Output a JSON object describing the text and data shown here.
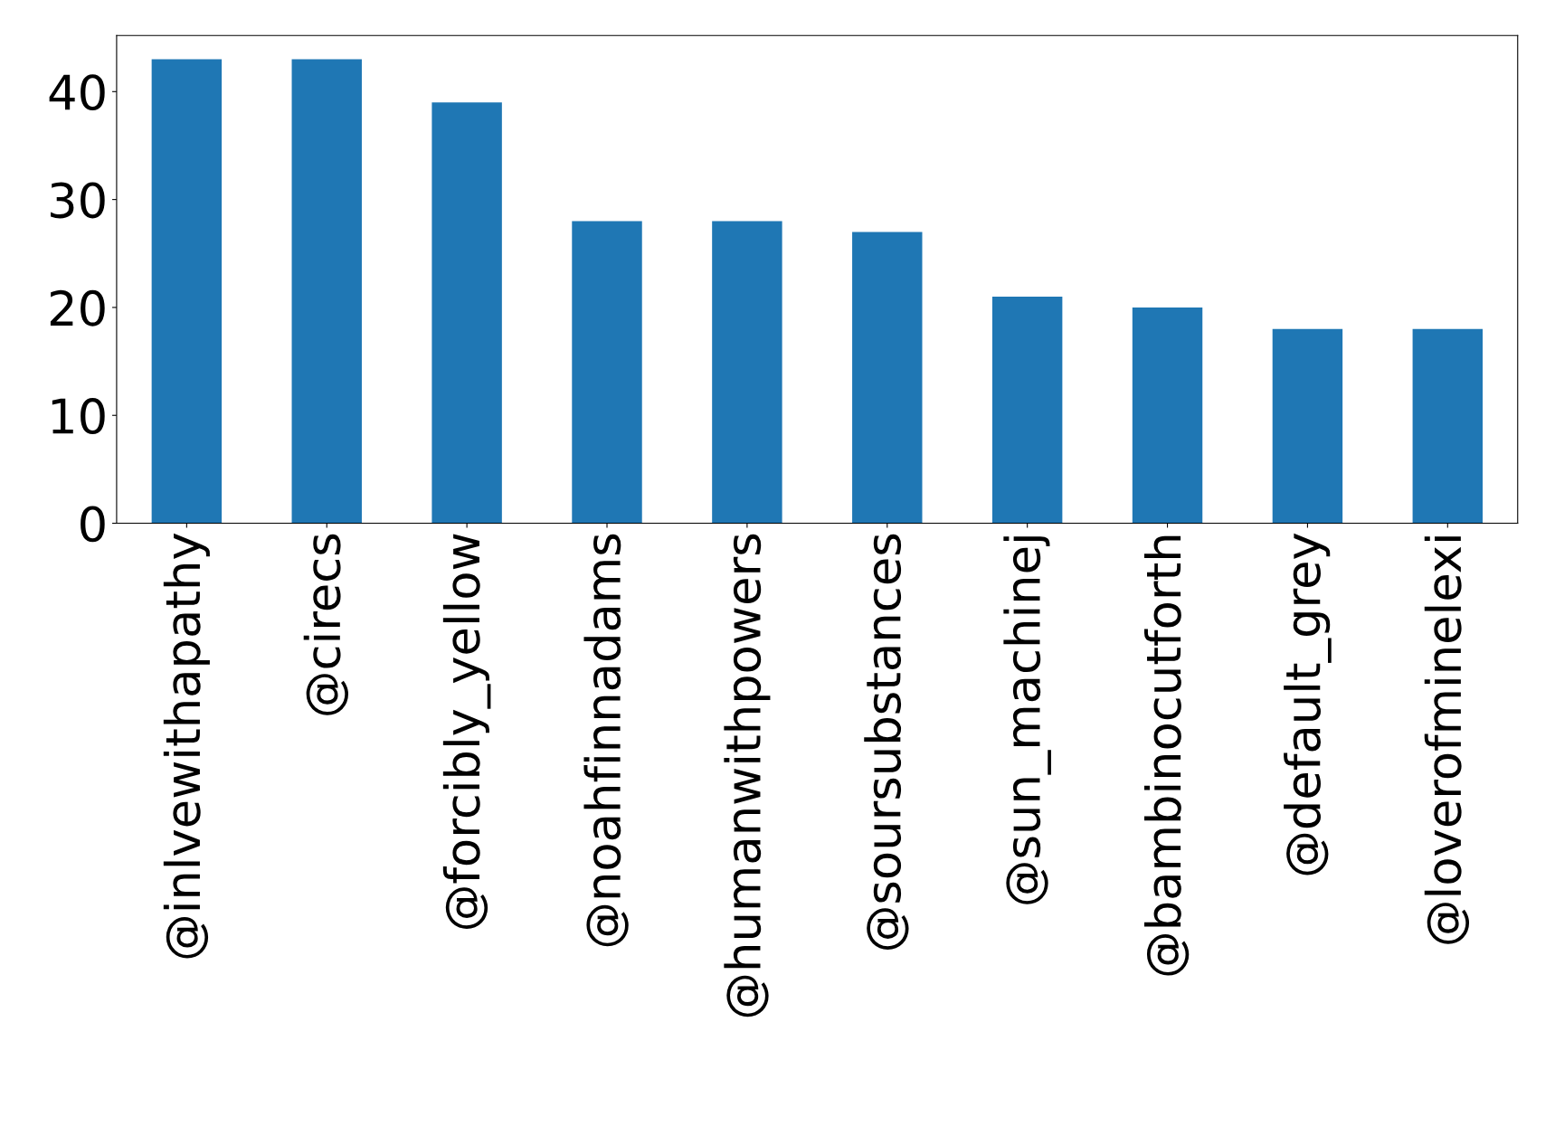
{
  "chart_data": {
    "type": "bar",
    "categories": [
      "@inlvewithapathy",
      "@cirecs",
      "@forcibly_yellow",
      "@noahfinnadams",
      "@humanwithpowers",
      "@soursubstances",
      "@sun_machinej",
      "@bambinocutforth",
      "@default_grey",
      "@loverofminelexi"
    ],
    "values": [
      43,
      43,
      39,
      28,
      28,
      27,
      21,
      20,
      18,
      18
    ],
    "color": "#1f77b4",
    "ylim": [
      0,
      45.2
    ],
    "yticks": [
      0,
      10,
      20,
      30,
      40
    ],
    "grid": false,
    "legend": false
  }
}
